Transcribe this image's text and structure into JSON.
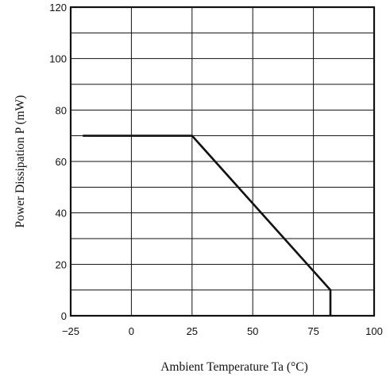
{
  "chart_data": {
    "type": "line",
    "title": "",
    "xlabel": "Ambient Temperature Ta (°C)",
    "ylabel": "Power Dissipation P (mW)",
    "xlim": [
      -25,
      100
    ],
    "ylim": [
      0,
      120
    ],
    "x_ticks": [
      -25,
      0,
      25,
      50,
      75,
      100
    ],
    "y_ticks": [
      0,
      20,
      40,
      60,
      80,
      100,
      120
    ],
    "x_tick_labels": [
      "−25",
      "0",
      "25",
      "50",
      "75",
      "100"
    ],
    "y_tick_labels": [
      "0",
      "20",
      "40",
      "60",
      "80",
      "100",
      "120"
    ],
    "grid": true,
    "grid_x": [
      -25,
      0,
      25,
      50,
      75,
      100
    ],
    "grid_y": [
      0,
      10,
      20,
      30,
      40,
      50,
      60,
      70,
      80,
      90,
      100,
      110,
      120
    ],
    "series": [
      {
        "x": [
          -20,
          25,
          82,
          82
        ],
        "y": [
          70,
          70,
          10,
          0
        ]
      }
    ],
    "colors": {
      "line": "#111111",
      "grid": "#111111",
      "background": "#ffffff"
    }
  }
}
